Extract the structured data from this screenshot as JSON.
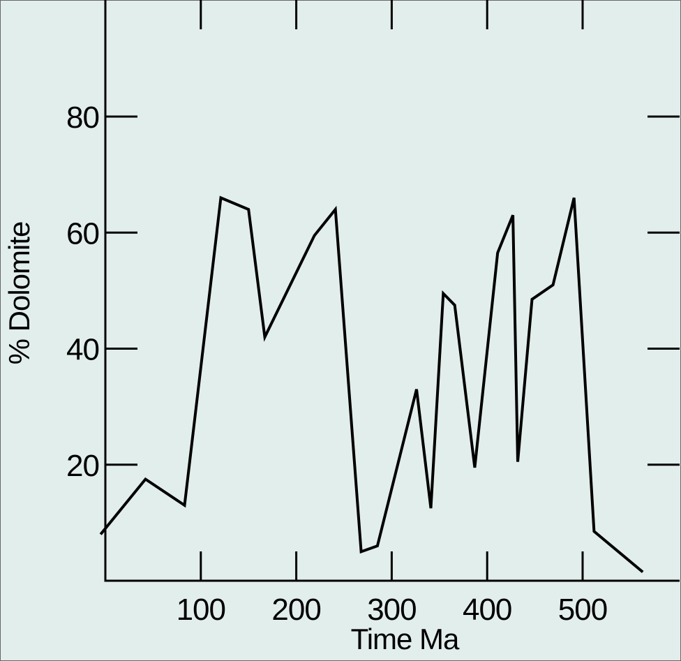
{
  "chart_data": {
    "type": "line",
    "title": "",
    "xlabel": "Time Ma",
    "ylabel": "% Dolomite",
    "xlim": [
      0,
      600
    ],
    "ylim": [
      0,
      97
    ],
    "x_ticks": [
      100,
      200,
      300,
      400,
      500
    ],
    "x_tick_labels": [
      "100",
      "200",
      "300",
      "400",
      "500"
    ],
    "y_ticks": [
      20,
      40,
      60,
      80
    ],
    "y_tick_labels": [
      "20",
      "40",
      "60",
      "80"
    ],
    "grid": false,
    "legend": "none",
    "colors": {
      "background": "#e2eeec",
      "line": "#000000"
    },
    "series": [
      {
        "x": [
          -5,
          42,
          83,
          121,
          150,
          167,
          219,
          241,
          268,
          285,
          326,
          341,
          354,
          366,
          387,
          411,
          427,
          432,
          447,
          469,
          491,
          512,
          563
        ],
        "y": [
          8,
          17.5,
          13,
          66,
          64,
          42,
          59.5,
          64,
          5,
          6,
          33,
          12.5,
          49.5,
          47.5,
          19.5,
          56.5,
          63,
          20.5,
          48.5,
          51,
          66,
          8.5,
          1.5
        ]
      }
    ]
  }
}
